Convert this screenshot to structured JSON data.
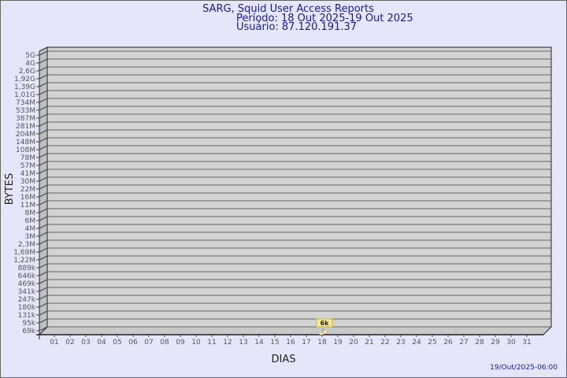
{
  "chart_data": {
    "type": "bar",
    "title": "SARG, Squid User Access Reports",
    "subtitle_period": "Período: 18 Out 2025-19 Out 2025",
    "subtitle_user": "Usuário: 87.120.191.37",
    "xlabel": "DIAS",
    "ylabel": "BYTES",
    "y_scale": "log",
    "grid": true,
    "yticks": [
      "5G",
      "4G",
      "2,6G",
      "1,92G",
      "1,39G",
      "1,01G",
      "734M",
      "533M",
      "387M",
      "281M",
      "204M",
      "148M",
      "108M",
      "78M",
      "57M",
      "41M",
      "30M",
      "22M",
      "16M",
      "11M",
      "8M",
      "6M",
      "4M",
      "3M",
      "2,3M",
      "1,69M",
      "1,22M",
      "889k",
      "646k",
      "469k",
      "341k",
      "247k",
      "180k",
      "131k",
      "95k",
      "69k"
    ],
    "categories": [
      "01",
      "02",
      "03",
      "04",
      "05",
      "06",
      "07",
      "08",
      "09",
      "10",
      "11",
      "12",
      "13",
      "14",
      "15",
      "16",
      "17",
      "18",
      "19",
      "20",
      "21",
      "22",
      "23",
      "24",
      "25",
      "26",
      "27",
      "28",
      "29",
      "30",
      "31"
    ],
    "bars": [
      {
        "day": "18",
        "value": 6000,
        "label": "6k"
      }
    ],
    "bar_color": "#ffeb9c",
    "plot_color": "#d3d3d3"
  },
  "footer": {
    "timestamp": "19/Out/2025-06:00"
  }
}
